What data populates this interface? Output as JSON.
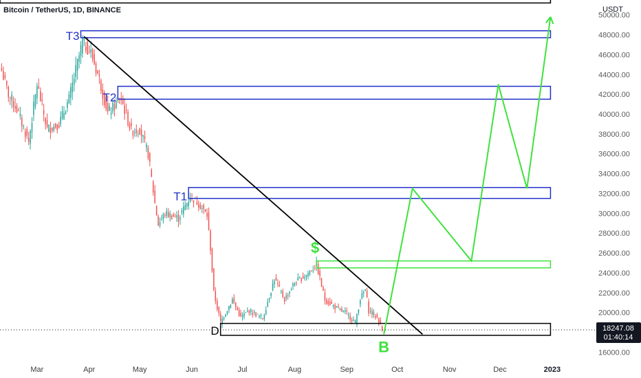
{
  "chart_data": {
    "type": "candlestick",
    "title": "Bitcoin / TetherUS, 1D, BINANCE",
    "price_axis_unit": "USDT",
    "y_ticks": [
      16000,
      18000,
      20000,
      22000,
      24000,
      26000,
      28000,
      30000,
      32000,
      34000,
      36000,
      38000,
      40000,
      42000,
      44000,
      46000,
      48000,
      50000
    ],
    "y_tick_labels": [
      "16000.00",
      "18000.00",
      "20000.00",
      "22000.00",
      "24000.00",
      "26000.00",
      "28000.00",
      "30000.00",
      "32000.00",
      "34000.00",
      "36000.00",
      "38000.00",
      "40000.00",
      "42000.00",
      "44000.00",
      "46000.00",
      "48000.00",
      "50000.00"
    ],
    "ylim": [
      15200,
      51500
    ],
    "x_tick_labels": [
      "Mar",
      "Apr",
      "May",
      "Jun",
      "Jul",
      "Aug",
      "Sep",
      "Oct",
      "Nov",
      "Dec",
      "2023"
    ],
    "x_tick_dates": [
      "2022-03-01",
      "2022-04-01",
      "2022-05-01",
      "2022-06-01",
      "2022-07-01",
      "2022-08-01",
      "2022-09-01",
      "2022-10-01",
      "2022-11-01",
      "2022-12-01",
      "2023-01-01"
    ],
    "xlim": [
      "2022-02-07",
      "2023-01-08"
    ],
    "last_price": {
      "value": 18247.08,
      "label": "18247.08",
      "countdown": "01:40:14"
    },
    "price_anchors": [
      [
        "2022-02-08",
        44400
      ],
      [
        "2022-02-12",
        42000
      ],
      [
        "2022-02-17",
        40500
      ],
      [
        "2022-02-24",
        37200
      ],
      [
        "2022-03-01",
        43000
      ],
      [
        "2022-03-07",
        38500
      ],
      [
        "2022-03-14",
        39000
      ],
      [
        "2022-03-20",
        41500
      ],
      [
        "2022-03-28",
        47300
      ],
      [
        "2022-04-02",
        46200
      ],
      [
        "2022-04-07",
        43500
      ],
      [
        "2022-04-12",
        40100
      ],
      [
        "2022-04-20",
        41500
      ],
      [
        "2022-04-26",
        38300
      ],
      [
        "2022-05-01",
        38500
      ],
      [
        "2022-05-06",
        36000
      ],
      [
        "2022-05-10",
        31000
      ],
      [
        "2022-05-12",
        28900
      ],
      [
        "2022-05-16",
        30000
      ],
      [
        "2022-05-24",
        29500
      ],
      [
        "2022-05-31",
        31700
      ],
      [
        "2022-06-05",
        31000
      ],
      [
        "2022-06-10",
        29800
      ],
      [
        "2022-06-12",
        26500
      ],
      [
        "2022-06-14",
        22000
      ],
      [
        "2022-06-18",
        19000
      ],
      [
        "2022-06-25",
        21300
      ],
      [
        "2022-06-30",
        19500
      ],
      [
        "2022-07-05",
        20200
      ],
      [
        "2022-07-13",
        19400
      ],
      [
        "2022-07-20",
        23400
      ],
      [
        "2022-07-26",
        21300
      ],
      [
        "2022-08-01",
        23000
      ],
      [
        "2022-08-08",
        23800
      ],
      [
        "2022-08-14",
        24800
      ],
      [
        "2022-08-19",
        21300
      ],
      [
        "2022-08-27",
        20300
      ],
      [
        "2022-08-31",
        20000
      ],
      [
        "2022-09-06",
        19000
      ],
      [
        "2022-09-09",
        21400
      ],
      [
        "2022-09-12",
        22300
      ],
      [
        "2022-09-14",
        20200
      ],
      [
        "2022-09-19",
        19500
      ],
      [
        "2022-09-22",
        18247.08
      ]
    ],
    "drawings": {
      "trendline": {
        "from": [
          "2022-03-29",
          47800
        ],
        "to": [
          "2022-10-16",
          17800
        ],
        "color": "#000000"
      },
      "top_box": {
        "left_date": "2022-02-07",
        "right_date": "2022-12-31",
        "top": 51800,
        "bottom": 51200,
        "color": "#000000"
      },
      "zones": [
        {
          "label": "T3",
          "left_date": "2022-03-27",
          "right_date": "2022-12-31",
          "top": 48400,
          "bottom": 47700,
          "color": "#2130c9"
        },
        {
          "label": "T2",
          "left_date": "2022-04-18",
          "right_date": "2022-12-31",
          "top": 42800,
          "bottom": 41500,
          "color": "#2130c9"
        },
        {
          "label": "T1",
          "left_date": "2022-05-30",
          "right_date": "2022-12-31",
          "top": 32600,
          "bottom": 31500,
          "color": "#2130c9"
        },
        {
          "label": "$",
          "left_date": "2022-08-14",
          "right_date": "2022-12-31",
          "top": 25200,
          "bottom": 24500,
          "color": "#3de23d"
        },
        {
          "label": "D",
          "left_date": "2022-06-18",
          "right_date": "2022-12-31",
          "top": 18900,
          "bottom": 17700,
          "color": "#000000"
        }
      ],
      "zone_label_color": "#2130c9",
      "buy_marker": {
        "label": "B",
        "date": "2022-09-23",
        "price": 16700,
        "color": "#3de23d"
      },
      "dollar_marker": {
        "label": "$",
        "date": "2022-08-14",
        "price": 26000,
        "color": "#3de23d"
      },
      "projection": {
        "color": "#3de23d",
        "points": [
          [
            "2022-09-23",
            17800
          ],
          [
            "2022-10-10",
            32500
          ],
          [
            "2022-11-14",
            25200
          ],
          [
            "2022-11-30",
            43000
          ],
          [
            "2022-12-17",
            32500
          ],
          [
            "2022-12-31",
            49800
          ]
        ]
      }
    },
    "colors": {
      "up": "#26a69a",
      "down": "#ef5350",
      "axis_text": "#5b5b5b",
      "last_price_bg": "#131722"
    }
  }
}
